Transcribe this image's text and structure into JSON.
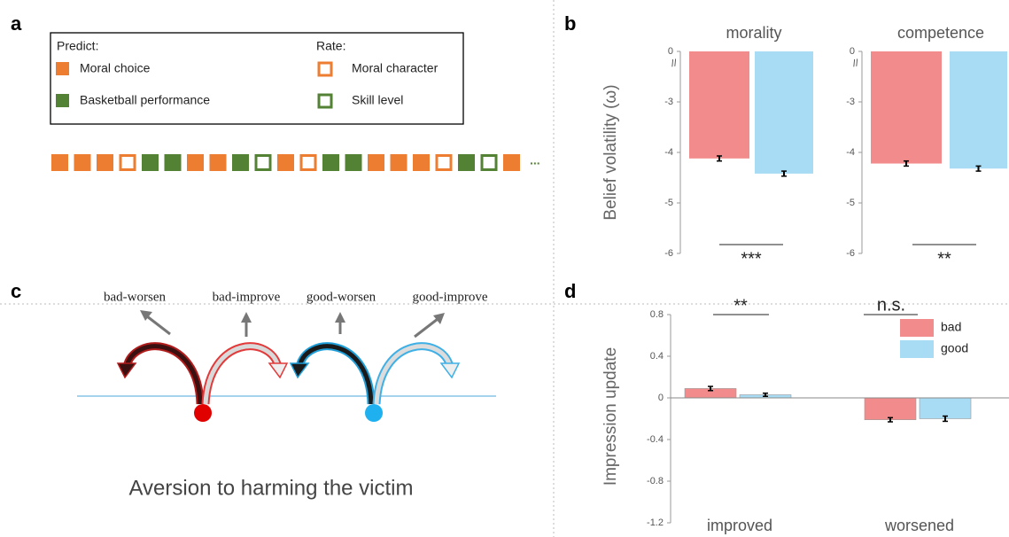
{
  "panel_labels": [
    "a",
    "b",
    "c",
    "d"
  ],
  "panel_a": {
    "predict_title": "Predict:",
    "rate_title": "Rate:",
    "items": [
      "Moral choice",
      "Basketball performance",
      "Moral character",
      "Skill level"
    ],
    "ellipsis": "..."
  },
  "panel_c": {
    "arrows": [
      "bad-worsen",
      "bad-improve",
      "good-worsen",
      "good-improve"
    ],
    "caption": "Aversion to harming the victim"
  },
  "chart_data": [
    {
      "type": "bar",
      "title": "morality",
      "ylabel": "Belief volatility (ω)",
      "axis_break_label": "//",
      "values": [
        -4.12,
        -4.42
      ],
      "errors": [
        0.05,
        0.05
      ],
      "colors": [
        "#f28b8b",
        "#a8dcf4"
      ],
      "ylim": [
        -6,
        0
      ],
      "yticks": [
        0,
        -3,
        -4,
        -5,
        -6
      ],
      "significance": "***"
    },
    {
      "type": "bar",
      "title": "competence",
      "axis_break_label": "//",
      "values": [
        -4.22,
        -4.32
      ],
      "errors": [
        0.05,
        0.05
      ],
      "colors": [
        "#f28b8b",
        "#a8dcf4"
      ],
      "ylim": [
        -6,
        0
      ],
      "yticks": [
        0,
        -3,
        -4,
        -5,
        -6
      ],
      "significance": "**"
    },
    {
      "type": "grouped_bar",
      "ylabel": "Impression update",
      "categories": [
        "improved",
        "worsened"
      ],
      "series": [
        {
          "name": "bad",
          "color": "#f28b8b",
          "values": [
            0.09,
            -0.21
          ],
          "errors": [
            0.02,
            0.02
          ]
        },
        {
          "name": "good",
          "color": "#a8dcf4",
          "values": [
            0.03,
            -0.2
          ],
          "errors": [
            0.015,
            0.025
          ]
        }
      ],
      "ylim": [
        -1.2,
        0.8
      ],
      "yticks": [
        -1.2,
        -0.8,
        -0.4,
        0,
        0.4,
        0.8
      ],
      "significance": [
        "**",
        "n.s."
      ],
      "legend": "upper right"
    }
  ]
}
